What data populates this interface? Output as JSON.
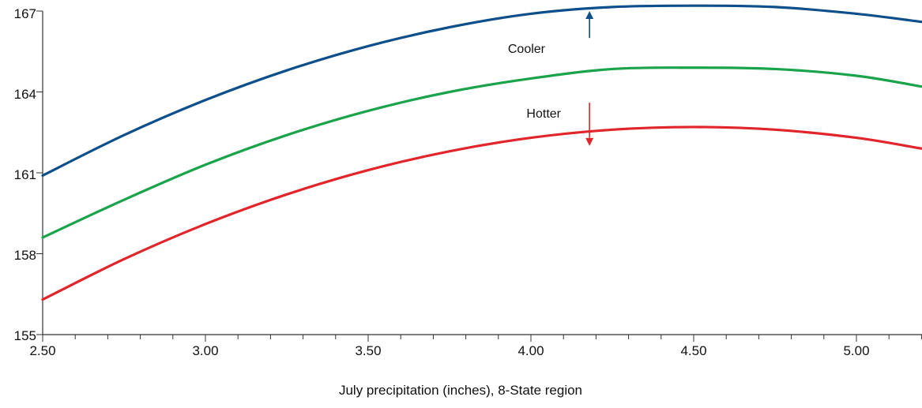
{
  "chart_data": {
    "type": "line",
    "title": "",
    "xlabel": "July precipitation (inches), 8-State region",
    "ylabel": "",
    "xlim": [
      2.5,
      5.2
    ],
    "ylim": [
      155,
      167
    ],
    "x_ticks": [
      "2.50",
      "3.00",
      "3.50",
      "4.00",
      "4.50",
      "5.00"
    ],
    "y_ticks": [
      "155",
      "158",
      "161",
      "164",
      "167"
    ],
    "grid": false,
    "legend": "none",
    "x": [
      2.5,
      2.75,
      3.0,
      3.25,
      3.5,
      3.75,
      4.0,
      4.25,
      4.5,
      4.75,
      5.0,
      5.2
    ],
    "series": [
      {
        "color": "#0d4f8b",
        "values": [
          160.9,
          162.4,
          163.7,
          164.8,
          165.7,
          166.4,
          166.9,
          167.15,
          167.2,
          167.15,
          166.9,
          166.6
        ]
      },
      {
        "color": "#1aa34a",
        "values": [
          158.6,
          160.0,
          161.3,
          162.4,
          163.3,
          164.0,
          164.5,
          164.85,
          164.9,
          164.85,
          164.6,
          164.2
        ]
      },
      {
        "color": "#e0252b",
        "values": [
          156.3,
          157.8,
          159.1,
          160.2,
          161.1,
          161.8,
          162.3,
          162.6,
          162.7,
          162.6,
          162.3,
          161.9
        ]
      }
    ],
    "annotations": [
      {
        "text": "Cooler",
        "arrow": "up",
        "color": "#0d4f8b",
        "x": 4.18,
        "y_from": 166.0,
        "y_to": 167.0
      },
      {
        "text": "Hotter",
        "arrow": "down",
        "color": "#e0252b",
        "x": 4.18,
        "y_from": 163.6,
        "y_to": 162.0
      }
    ]
  }
}
